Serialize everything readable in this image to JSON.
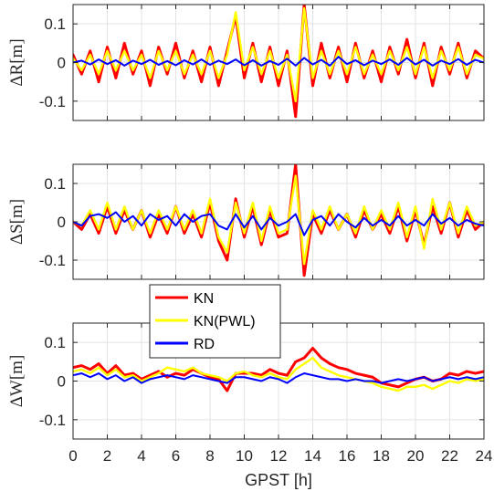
{
  "chart_data": {
    "type": "line",
    "xlabel": "GPST [h]",
    "xlim": [
      0,
      24
    ],
    "xticks": [
      "0",
      "2",
      "4",
      "6",
      "8",
      "10",
      "12",
      "14",
      "16",
      "18",
      "20",
      "22",
      "24"
    ],
    "grid": true,
    "legend": {
      "placement": "center-left, between middle and bottom panels",
      "entries": [
        {
          "name": "KN",
          "color": "#ff0000"
        },
        {
          "name": "KN(PWL)",
          "color": "#ffff00"
        },
        {
          "name": "RD",
          "color": "#0000ff"
        }
      ]
    },
    "panels": [
      {
        "ylabel": "ΔR[m]",
        "ylim": [
          -0.15,
          0.15
        ],
        "yticks": [
          "-0.1",
          "0",
          "0.1"
        ],
        "series": [
          {
            "name": "KN",
            "color": "#ff0000",
            "x": [
              0,
              0.5,
              1,
              1.5,
              2,
              2.5,
              3,
              3.5,
              4,
              4.5,
              5,
              5.5,
              6,
              6.5,
              7,
              7.5,
              8,
              8.5,
              9,
              9.5,
              10,
              10.5,
              11,
              11.5,
              12,
              12.5,
              13,
              13.5,
              14,
              14.5,
              15,
              15.5,
              16,
              16.5,
              17,
              17.5,
              18,
              18.5,
              19,
              19.5,
              20,
              20.5,
              21,
              21.5,
              22,
              22.5,
              23,
              23.5,
              24
            ],
            "values": [
              0.02,
              -0.03,
              0.03,
              -0.05,
              0.04,
              -0.04,
              0.05,
              -0.03,
              0.03,
              -0.06,
              0.04,
              -0.03,
              0.05,
              -0.04,
              0.03,
              -0.05,
              0.04,
              -0.06,
              0.03,
              0.12,
              -0.04,
              0.05,
              -0.05,
              0.04,
              -0.06,
              0.03,
              -0.14,
              0.15,
              -0.06,
              0.05,
              -0.04,
              0.04,
              -0.05,
              0.05,
              -0.04,
              0.03,
              -0.05,
              0.04,
              -0.03,
              0.06,
              -0.04,
              0.05,
              -0.06,
              0.04,
              -0.03,
              0.05,
              -0.04,
              0.03,
              0.01
            ]
          },
          {
            "name": "KN(PWL)",
            "color": "#ffff00",
            "x": [
              0,
              0.5,
              1,
              1.5,
              2,
              2.5,
              3,
              3.5,
              4,
              4.5,
              5,
              5.5,
              6,
              6.5,
              7,
              7.5,
              8,
              8.5,
              9,
              9.5,
              10,
              10.5,
              11,
              11.5,
              12,
              12.5,
              13,
              13.5,
              14,
              14.5,
              15,
              15.5,
              16,
              16.5,
              17,
              17.5,
              18,
              18.5,
              19,
              19.5,
              20,
              20.5,
              21,
              21.5,
              22,
              22.5,
              23,
              23.5,
              24
            ],
            "values": [
              0.01,
              -0.02,
              0.02,
              -0.03,
              0.03,
              -0.02,
              0.03,
              -0.02,
              0.02,
              -0.04,
              0.03,
              -0.02,
              0.03,
              -0.03,
              0.02,
              -0.03,
              0.03,
              -0.04,
              0.02,
              0.13,
              -0.02,
              0.04,
              -0.03,
              0.03,
              -0.04,
              0.02,
              -0.1,
              0.14,
              -0.04,
              0.03,
              -0.03,
              0.03,
              -0.03,
              0.04,
              -0.03,
              0.02,
              -0.03,
              0.03,
              -0.02,
              0.04,
              -0.03,
              0.04,
              -0.04,
              0.03,
              -0.02,
              0.04,
              -0.03,
              0.02,
              0.01
            ]
          },
          {
            "name": "RD",
            "color": "#0000ff",
            "x": [
              0,
              0.5,
              1,
              1.5,
              2,
              2.5,
              3,
              3.5,
              4,
              4.5,
              5,
              5.5,
              6,
              6.5,
              7,
              7.5,
              8,
              8.5,
              9,
              9.5,
              10,
              10.5,
              11,
              11.5,
              12,
              12.5,
              13,
              13.5,
              14,
              14.5,
              15,
              15.5,
              16,
              16.5,
              17,
              17.5,
              18,
              18.5,
              19,
              19.5,
              20,
              20.5,
              21,
              21.5,
              22,
              22.5,
              23,
              23.5,
              24
            ],
            "values": [
              0.0,
              0.005,
              -0.005,
              0.008,
              -0.004,
              0.006,
              -0.008,
              0.005,
              -0.004,
              0.007,
              -0.006,
              0.004,
              -0.007,
              0.006,
              -0.005,
              0.008,
              -0.006,
              0.005,
              -0.004,
              0.008,
              -0.007,
              0.006,
              -0.008,
              0.004,
              -0.006,
              0.01,
              -0.008,
              0.012,
              -0.005,
              0.007,
              -0.008,
              0.015,
              -0.004,
              0.006,
              -0.007,
              0.005,
              -0.004,
              0.008,
              -0.006,
              0.012,
              -0.005,
              0.007,
              -0.008,
              0.005,
              -0.004,
              0.009,
              -0.006,
              0.007,
              0.0
            ]
          }
        ]
      },
      {
        "ylabel": "ΔS[m]",
        "ylim": [
          -0.15,
          0.15
        ],
        "yticks": [
          "-0.1",
          "0",
          "0.1"
        ],
        "series": [
          {
            "name": "KN",
            "color": "#ff0000",
            "x": [
              0,
              0.5,
              1,
              1.5,
              2,
              2.5,
              3,
              3.5,
              4,
              4.5,
              5,
              5.5,
              6,
              6.5,
              7,
              7.5,
              8,
              8.5,
              9,
              9.5,
              10,
              10.5,
              11,
              11.5,
              12,
              12.5,
              13,
              13.5,
              14,
              14.5,
              15,
              15.5,
              16,
              16.5,
              17,
              17.5,
              18,
              18.5,
              19,
              19.5,
              20,
              20.5,
              21,
              21.5,
              22,
              22.5,
              23,
              23.5,
              24
            ],
            "values": [
              0.0,
              -0.02,
              0.02,
              -0.03,
              0.04,
              -0.03,
              0.03,
              -0.02,
              0.03,
              -0.04,
              0.02,
              -0.03,
              0.04,
              -0.03,
              0.02,
              -0.04,
              0.05,
              -0.05,
              -0.1,
              0.06,
              -0.04,
              0.04,
              -0.06,
              0.03,
              -0.04,
              -0.03,
              0.15,
              -0.14,
              0.02,
              -0.03,
              0.03,
              -0.02,
              0.02,
              -0.04,
              0.03,
              -0.02,
              0.02,
              -0.03,
              0.04,
              -0.05,
              0.03,
              -0.06,
              0.04,
              -0.03,
              0.05,
              -0.04,
              0.03,
              -0.02,
              0.0
            ]
          },
          {
            "name": "KN(PWL)",
            "color": "#ffff00",
            "x": [
              0,
              0.5,
              1,
              1.5,
              2,
              2.5,
              3,
              3.5,
              4,
              4.5,
              5,
              5.5,
              6,
              6.5,
              7,
              7.5,
              8,
              8.5,
              9,
              9.5,
              10,
              10.5,
              11,
              11.5,
              12,
              12.5,
              13,
              13.5,
              14,
              14.5,
              15,
              15.5,
              16,
              16.5,
              17,
              17.5,
              18,
              18.5,
              19,
              19.5,
              20,
              20.5,
              21,
              21.5,
              22,
              22.5,
              23,
              23.5,
              24
            ],
            "values": [
              0.0,
              -0.01,
              0.03,
              -0.02,
              0.05,
              -0.02,
              0.04,
              -0.02,
              0.03,
              -0.03,
              0.03,
              -0.02,
              0.04,
              -0.02,
              0.03,
              -0.03,
              0.06,
              -0.04,
              -0.08,
              0.05,
              -0.03,
              0.05,
              -0.05,
              0.04,
              -0.03,
              -0.02,
              0.12,
              -0.11,
              0.03,
              -0.02,
              0.04,
              -0.02,
              0.02,
              -0.03,
              0.04,
              -0.02,
              0.03,
              -0.02,
              0.05,
              -0.04,
              0.04,
              -0.07,
              0.06,
              -0.02,
              0.05,
              -0.03,
              0.04,
              -0.01,
              0.0
            ]
          },
          {
            "name": "RD",
            "color": "#0000ff",
            "x": [
              0,
              0.5,
              1,
              1.5,
              2,
              2.5,
              3,
              3.5,
              4,
              4.5,
              5,
              5.5,
              6,
              6.5,
              7,
              7.5,
              8,
              8.5,
              9,
              9.5,
              10,
              10.5,
              11,
              11.5,
              12,
              12.5,
              13,
              13.5,
              14,
              14.5,
              15,
              15.5,
              16,
              16.5,
              17,
              17.5,
              18,
              18.5,
              19,
              19.5,
              20,
              20.5,
              21,
              21.5,
              22,
              22.5,
              23,
              23.5,
              24
            ],
            "values": [
              0.0,
              -0.01,
              0.015,
              0.02,
              0.01,
              0.025,
              0.0,
              0.015,
              -0.01,
              0.02,
              0.005,
              0.015,
              -0.01,
              0.02,
              0.0,
              0.015,
              0.02,
              -0.01,
              -0.02,
              0.02,
              -0.015,
              0.015,
              -0.02,
              0.01,
              -0.01,
              0.0,
              0.02,
              -0.035,
              0.005,
              0.015,
              -0.01,
              0.02,
              0.0,
              -0.015,
              0.01,
              -0.01,
              0.005,
              -0.01,
              0.015,
              -0.01,
              0.005,
              -0.01,
              0.02,
              -0.005,
              0.01,
              -0.01,
              0.005,
              -0.005,
              -0.01
            ]
          }
        ]
      },
      {
        "ylabel": "ΔW[m]",
        "ylim": [
          -0.15,
          0.15
        ],
        "yticks": [
          "-0.1",
          "0",
          "0.1"
        ],
        "series": [
          {
            "name": "KN",
            "color": "#ff0000",
            "x": [
              0,
              0.5,
              1,
              1.5,
              2,
              2.5,
              3,
              3.5,
              4,
              4.5,
              5,
              5.5,
              6,
              6.5,
              7,
              7.5,
              8,
              8.5,
              9,
              9.5,
              10,
              10.5,
              11,
              11.5,
              12,
              12.5,
              13,
              13.5,
              14,
              14.5,
              15,
              15.5,
              16,
              16.5,
              17,
              17.5,
              18,
              18.5,
              19,
              19.5,
              20,
              20.5,
              21,
              21.5,
              22,
              22.5,
              23,
              23.5,
              24
            ],
            "values": [
              0.035,
              0.04,
              0.03,
              0.045,
              0.02,
              0.04,
              0.015,
              0.02,
              0.005,
              0.015,
              0.025,
              0.01,
              0.02,
              0.015,
              0.03,
              0.02,
              0.01,
              0.005,
              -0.025,
              0.02,
              0.02,
              0.02,
              0.015,
              0.03,
              0.02,
              0.015,
              0.05,
              0.06,
              0.085,
              0.06,
              0.045,
              0.035,
              0.03,
              0.02,
              0.015,
              0.01,
              -0.005,
              -0.01,
              -0.015,
              -0.005,
              0.005,
              0.01,
              0.0,
              0.005,
              0.02,
              0.015,
              0.025,
              0.02,
              0.025
            ]
          },
          {
            "name": "KN(PWL)",
            "color": "#ffff00",
            "x": [
              0,
              0.5,
              1,
              1.5,
              2,
              2.5,
              3,
              3.5,
              4,
              4.5,
              5,
              5.5,
              6,
              6.5,
              7,
              7.5,
              8,
              8.5,
              9,
              9.5,
              10,
              10.5,
              11,
              11.5,
              12,
              12.5,
              13,
              13.5,
              14,
              14.5,
              15,
              15.5,
              16,
              16.5,
              17,
              17.5,
              18,
              18.5,
              19,
              19.5,
              20,
              20.5,
              21,
              21.5,
              22,
              22.5,
              23,
              23.5,
              24
            ],
            "values": [
              0.025,
              0.03,
              0.02,
              0.035,
              0.015,
              0.03,
              0.01,
              0.015,
              0.0,
              0.01,
              0.02,
              0.035,
              0.03,
              0.025,
              0.035,
              0.02,
              0.015,
              0.01,
              0.0,
              0.02,
              0.025,
              0.015,
              0.01,
              0.02,
              0.01,
              0.005,
              0.03,
              0.045,
              0.06,
              0.035,
              0.025,
              0.015,
              0.01,
              0.005,
              0.0,
              -0.005,
              -0.015,
              -0.02,
              -0.025,
              -0.015,
              -0.015,
              -0.01,
              -0.02,
              -0.01,
              0.0,
              -0.005,
              0.005,
              0.0,
              0.005
            ]
          },
          {
            "name": "RD",
            "color": "#0000ff",
            "x": [
              0,
              0.5,
              1,
              1.5,
              2,
              2.5,
              3,
              3.5,
              4,
              4.5,
              5,
              5.5,
              6,
              6.5,
              7,
              7.5,
              8,
              8.5,
              9,
              9.5,
              10,
              10.5,
              11,
              11.5,
              12,
              12.5,
              13,
              13.5,
              14,
              14.5,
              15,
              15.5,
              16,
              16.5,
              17,
              17.5,
              18,
              18.5,
              19,
              19.5,
              20,
              20.5,
              21,
              21.5,
              22,
              22.5,
              23,
              23.5,
              24
            ],
            "values": [
              0.015,
              0.02,
              0.01,
              0.02,
              0.005,
              0.015,
              0.0,
              0.01,
              -0.005,
              0.005,
              0.01,
              0.015,
              0.01,
              0.005,
              0.015,
              0.01,
              0.005,
              0.0,
              -0.005,
              0.01,
              0.01,
              0.005,
              0.0,
              0.01,
              0.005,
              -0.005,
              0.01,
              0.02,
              0.015,
              0.01,
              0.005,
              0.005,
              0.0,
              0.005,
              0.0,
              0.0,
              -0.005,
              0.0,
              0.005,
              0.0,
              0.005,
              0.01,
              0.0,
              0.005,
              0.01,
              0.005,
              0.01,
              0.005,
              0.01
            ]
          }
        ]
      }
    ]
  }
}
